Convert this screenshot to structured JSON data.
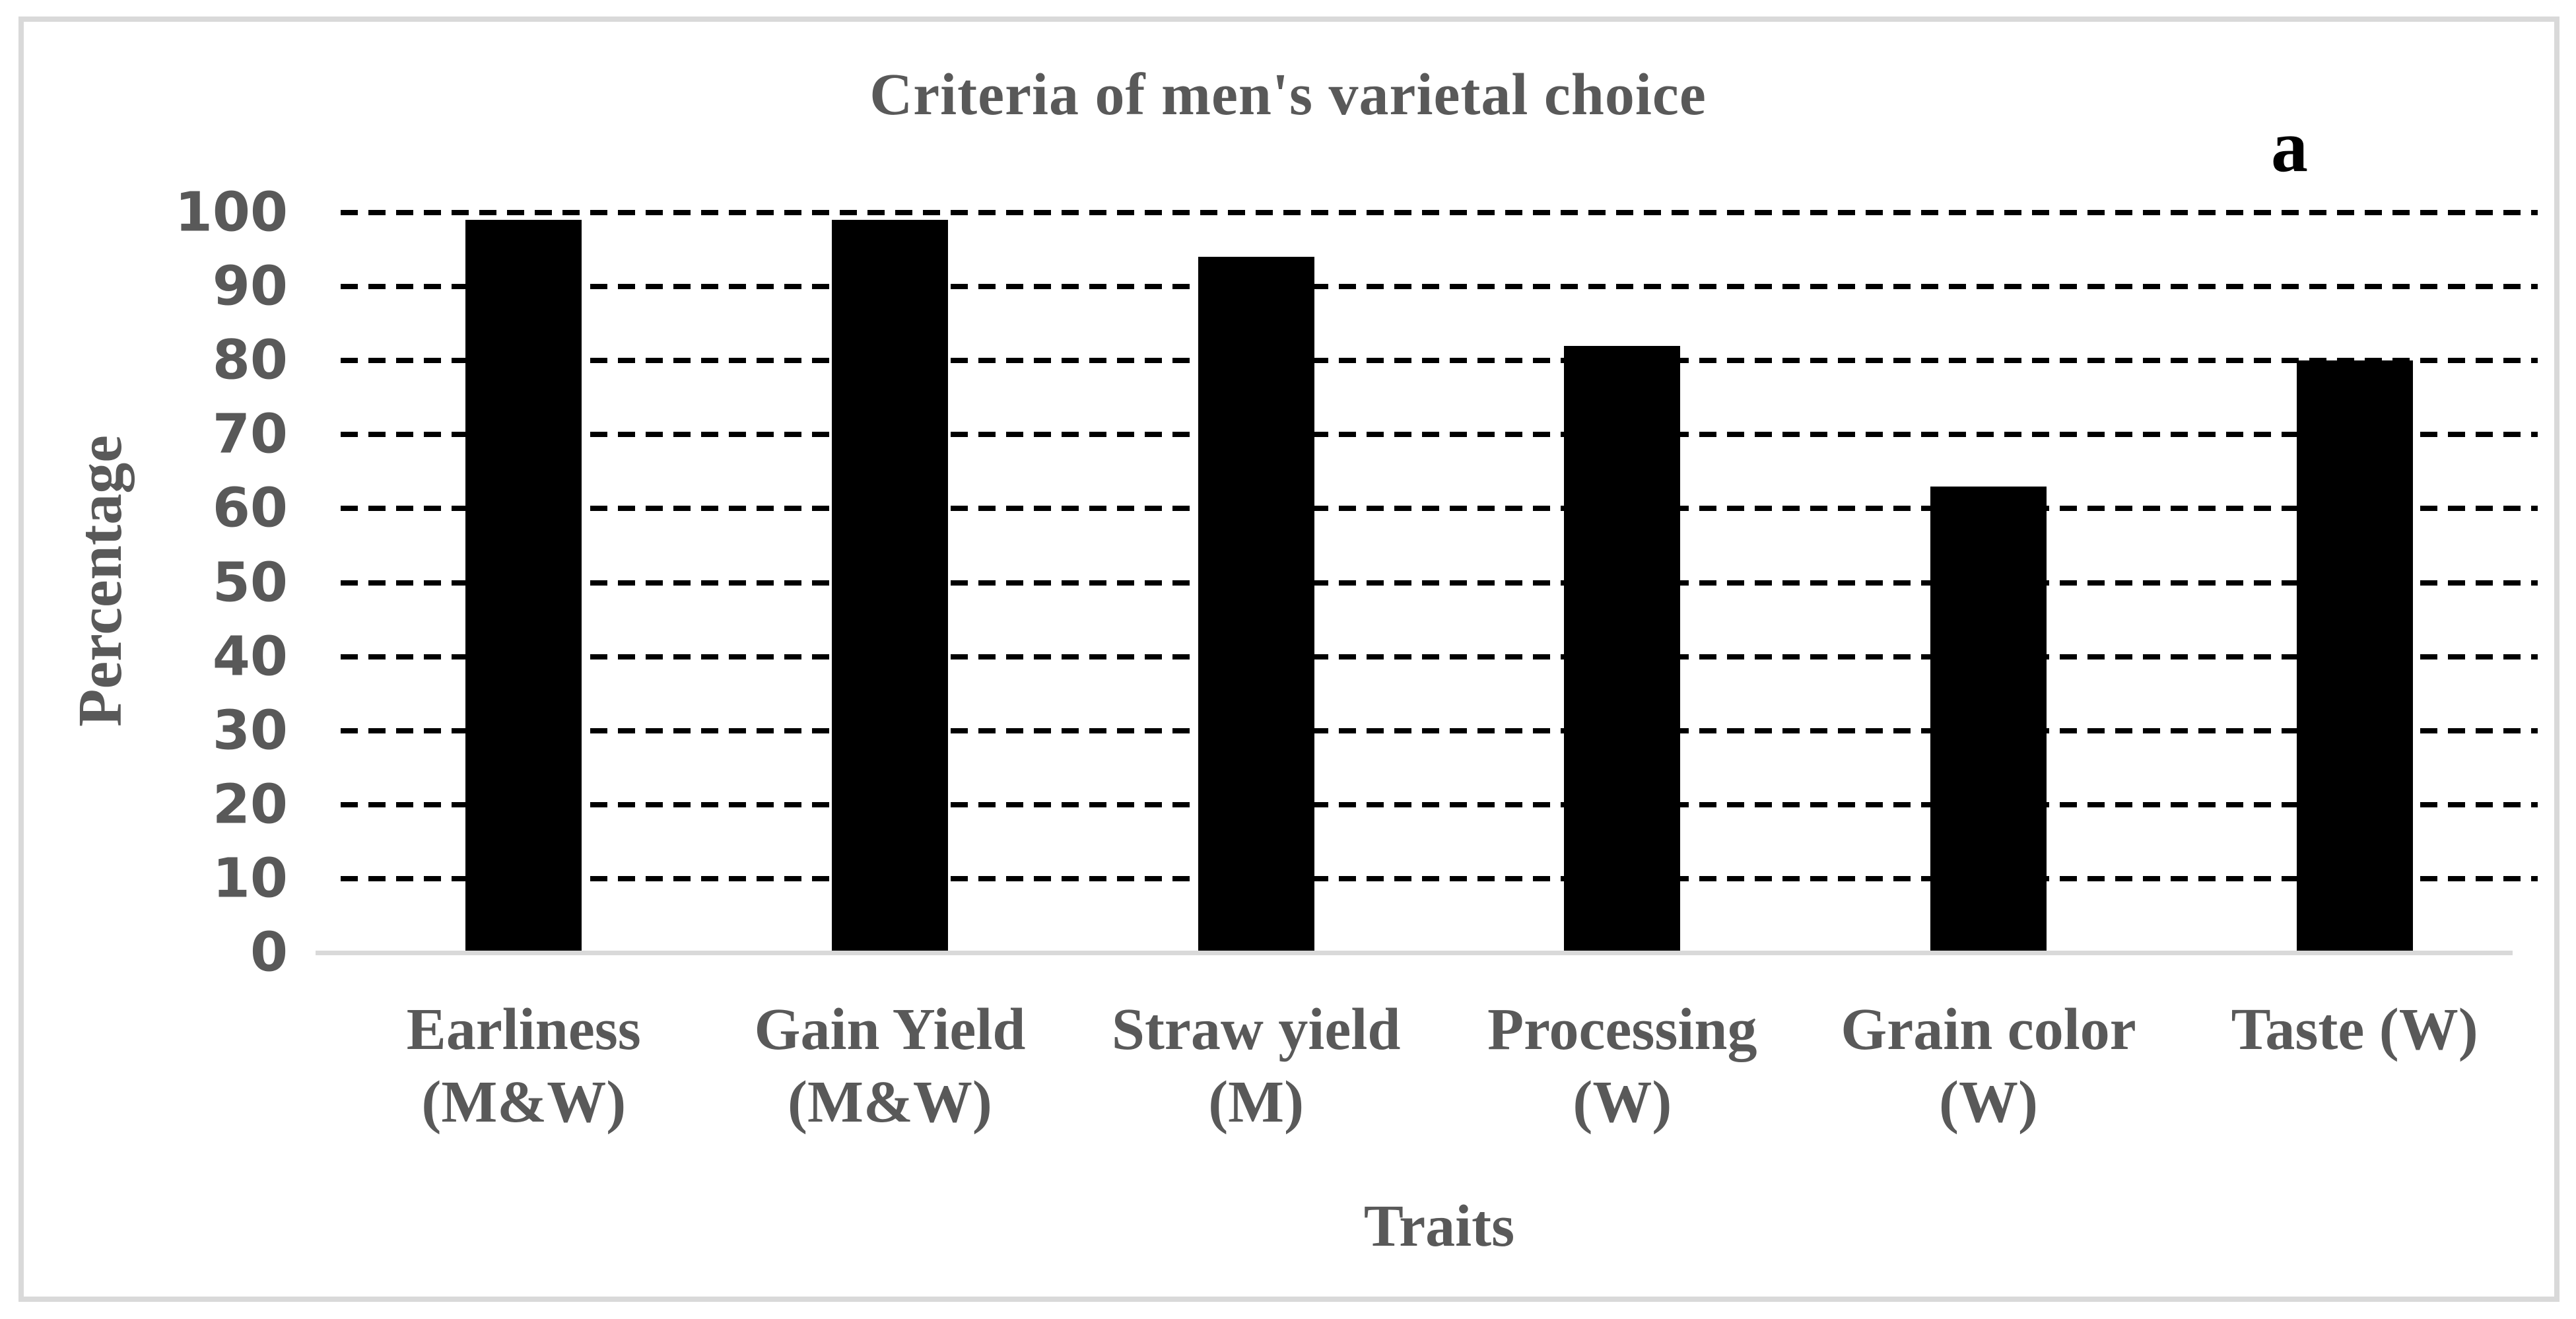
{
  "figure_label": "a",
  "chart_data": {
    "type": "bar",
    "title": "Criteria of men's varietal choice",
    "xlabel": "Traits",
    "ylabel": "Percentage",
    "categories": [
      "Earliness (M&W)",
      "Gain Yield (M&W)",
      "Straw yield (M)",
      "Processing (W)",
      "Grain color (W)",
      "Taste (W)"
    ],
    "category_label_lines": [
      [
        "Earliness",
        "(M&W)"
      ],
      [
        "Gain Yield",
        "(M&W)"
      ],
      [
        "Straw yield",
        "(M)"
      ],
      [
        "Processing",
        "(W)"
      ],
      [
        "Grain color",
        "(W)"
      ],
      [
        "Taste (W)"
      ]
    ],
    "values": [
      99,
      99,
      94,
      82,
      63,
      80
    ],
    "ylim": [
      0,
      100
    ],
    "yticks": [
      0,
      10,
      20,
      30,
      40,
      50,
      60,
      70,
      80,
      90,
      100
    ],
    "grid": "horizontal dashed gridlines at every 10",
    "legend_position": "none",
    "bar_color": "#000000"
  },
  "colors": {
    "background": "#FFFFFF",
    "frame_border": "#D9D9D9",
    "axis_line": "#D9D9D9",
    "gridline": "#000000",
    "bar": "#000000",
    "text": "#595959",
    "figure_label": "#000000"
  }
}
